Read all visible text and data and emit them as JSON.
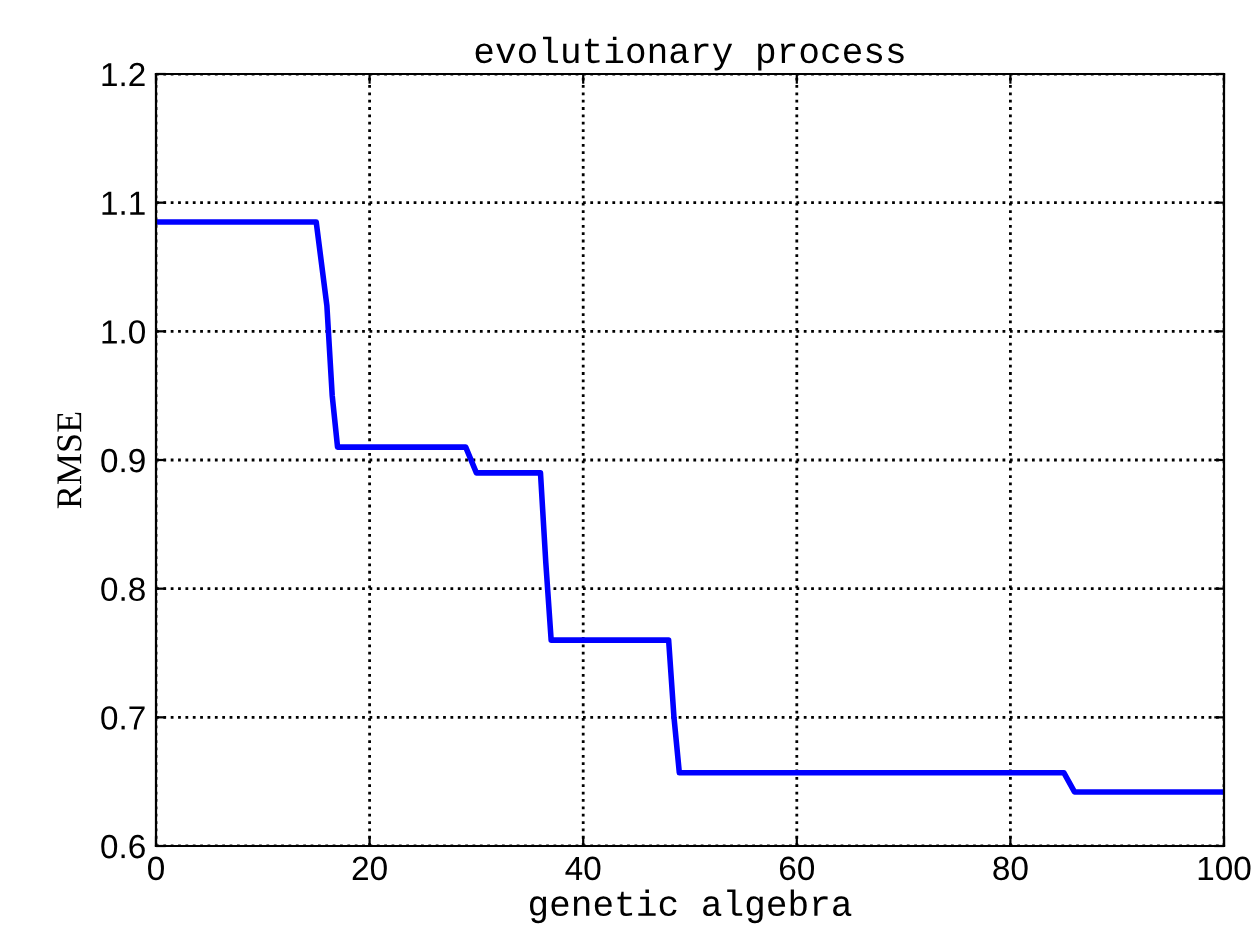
{
  "chart_data": {
    "type": "line",
    "title": "evolutionary process",
    "xlabel": "genetic algebra",
    "ylabel": "RMSE",
    "series": [
      {
        "color": "#0000ff",
        "x": [
          0,
          15,
          16,
          16.5,
          17,
          29,
          30,
          36,
          36.5,
          37,
          48,
          48.5,
          49,
          85,
          86,
          100
        ],
        "values": [
          1.085,
          1.085,
          1.02,
          0.95,
          0.91,
          0.91,
          0.89,
          0.89,
          0.82,
          0.76,
          0.76,
          0.7,
          0.657,
          0.657,
          0.642,
          0.642
        ]
      }
    ],
    "xlim": [
      0,
      100
    ],
    "ylim": [
      0.6,
      1.2
    ],
    "xticks": [
      0,
      20,
      40,
      60,
      80,
      100
    ],
    "yticks": [
      0.6,
      0.7,
      0.8,
      0.9,
      {
        "value": 1.0,
        "label": "1.0"
      },
      1.1,
      1.2
    ],
    "grid": true,
    "marker": "none",
    "line_style": "solid"
  }
}
